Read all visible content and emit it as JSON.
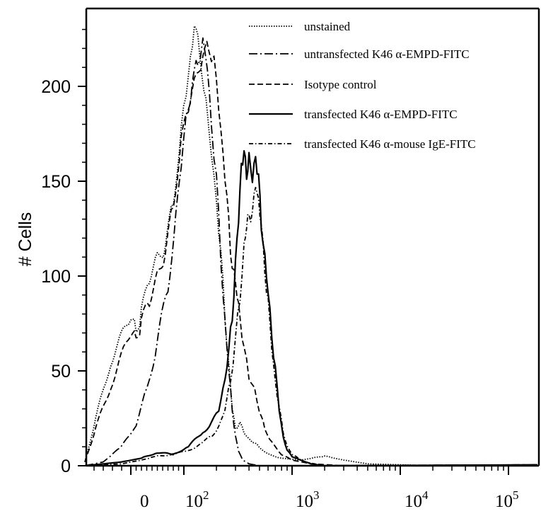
{
  "chart_data": {
    "type": "line",
    "title": "",
    "ylabel": "# Cells",
    "xlabel": "",
    "x_axis_scale": "biexponential (logicle)",
    "ylim": [
      0,
      235
    ],
    "yticks": [
      0,
      50,
      100,
      150,
      200
    ],
    "xtick_labels": [
      {
        "base": "0",
        "exp": ""
      },
      {
        "base": "10",
        "exp": "2"
      },
      {
        "base": "10",
        "exp": "3"
      },
      {
        "base": "10",
        "exp": "4"
      },
      {
        "base": "10",
        "exp": "5"
      }
    ],
    "grid": false,
    "legend_position": "top-right",
    "series": [
      {
        "name": "unstained",
        "style": "dotted",
        "points": [
          [
            -50,
            2
          ],
          [
            -38,
            25
          ],
          [
            -22,
            55
          ],
          [
            -8,
            70
          ],
          [
            0,
            78
          ],
          [
            10,
            72
          ],
          [
            20,
            80
          ],
          [
            35,
            100
          ],
          [
            50,
            110
          ],
          [
            65,
            115
          ],
          [
            80,
            140
          ],
          [
            95,
            175
          ],
          [
            105,
            198
          ],
          [
            115,
            215
          ],
          [
            125,
            230
          ],
          [
            140,
            220
          ],
          [
            160,
            190
          ],
          [
            180,
            165
          ],
          [
            200,
            140
          ],
          [
            220,
            110
          ],
          [
            240,
            80
          ],
          [
            260,
            52
          ],
          [
            280,
            30
          ],
          [
            300,
            20
          ],
          [
            330,
            22
          ],
          [
            360,
            18
          ],
          [
            400,
            14
          ],
          [
            450,
            12
          ],
          [
            500,
            10
          ],
          [
            600,
            6
          ],
          [
            800,
            4
          ],
          [
            1200,
            3
          ],
          [
            2000,
            5
          ],
          [
            3000,
            3
          ],
          [
            5000,
            1
          ],
          [
            20000,
            0
          ]
        ]
      },
      {
        "name": "untransfected K46 α-EMPD-FITC",
        "style": "long-dash-dot",
        "points": [
          [
            -50,
            0
          ],
          [
            -30,
            2
          ],
          [
            -10,
            10
          ],
          [
            10,
            22
          ],
          [
            30,
            40
          ],
          [
            50,
            65
          ],
          [
            70,
            95
          ],
          [
            85,
            130
          ],
          [
            95,
            160
          ],
          [
            105,
            185
          ],
          [
            120,
            200
          ],
          [
            135,
            215
          ],
          [
            150,
            222
          ],
          [
            165,
            210
          ],
          [
            180,
            180
          ],
          [
            200,
            150
          ],
          [
            220,
            110
          ],
          [
            240,
            75
          ],
          [
            260,
            50
          ],
          [
            280,
            30
          ],
          [
            300,
            15
          ],
          [
            320,
            8
          ],
          [
            350,
            3
          ],
          [
            400,
            1
          ],
          [
            500,
            0
          ]
        ]
      },
      {
        "name": "Isotype control",
        "style": "dashed",
        "points": [
          [
            -50,
            2
          ],
          [
            -38,
            20
          ],
          [
            -22,
            42
          ],
          [
            -8,
            60
          ],
          [
            0,
            70
          ],
          [
            10,
            68
          ],
          [
            20,
            75
          ],
          [
            35,
            88
          ],
          [
            50,
            100
          ],
          [
            65,
            112
          ],
          [
            80,
            138
          ],
          [
            95,
            170
          ],
          [
            110,
            190
          ],
          [
            130,
            205
          ],
          [
            150,
            215
          ],
          [
            170,
            222
          ],
          [
            190,
            212
          ],
          [
            210,
            190
          ],
          [
            230,
            165
          ],
          [
            250,
            140
          ],
          [
            270,
            115
          ],
          [
            290,
            100
          ],
          [
            310,
            90
          ],
          [
            330,
            80
          ],
          [
            360,
            60
          ],
          [
            400,
            48
          ],
          [
            450,
            40
          ],
          [
            500,
            28
          ],
          [
            560,
            20
          ],
          [
            650,
            12
          ],
          [
            800,
            6
          ],
          [
            1000,
            3
          ],
          [
            1500,
            1
          ],
          [
            3000,
            0
          ]
        ]
      },
      {
        "name": "transfected K46 α-EMPD-FITC",
        "style": "solid",
        "points": [
          [
            -50,
            0
          ],
          [
            -10,
            2
          ],
          [
            20,
            4
          ],
          [
            50,
            7
          ],
          [
            80,
            6
          ],
          [
            110,
            10
          ],
          [
            150,
            18
          ],
          [
            180,
            22
          ],
          [
            210,
            30
          ],
          [
            240,
            45
          ],
          [
            260,
            60
          ],
          [
            280,
            80
          ],
          [
            300,
            105
          ],
          [
            320,
            130
          ],
          [
            340,
            160
          ],
          [
            360,
            163
          ],
          [
            380,
            155
          ],
          [
            400,
            162
          ],
          [
            430,
            150
          ],
          [
            460,
            165
          ],
          [
            490,
            150
          ],
          [
            520,
            128
          ],
          [
            560,
            110
          ],
          [
            600,
            90
          ],
          [
            650,
            70
          ],
          [
            700,
            50
          ],
          [
            760,
            30
          ],
          [
            830,
            15
          ],
          [
            900,
            8
          ],
          [
            1000,
            5
          ],
          [
            1200,
            3
          ],
          [
            1500,
            1
          ],
          [
            2000,
            0
          ]
        ]
      },
      {
        "name": "transfected K46 α-mouse IgE-FITC",
        "style": "dash-dot",
        "points": [
          [
            -50,
            0
          ],
          [
            -10,
            1
          ],
          [
            20,
            3
          ],
          [
            50,
            5
          ],
          [
            80,
            6
          ],
          [
            110,
            8
          ],
          [
            150,
            12
          ],
          [
            180,
            16
          ],
          [
            210,
            20
          ],
          [
            240,
            30
          ],
          [
            270,
            45
          ],
          [
            300,
            65
          ],
          [
            330,
            90
          ],
          [
            360,
            115
          ],
          [
            380,
            125
          ],
          [
            400,
            135
          ],
          [
            430,
            130
          ],
          [
            460,
            150
          ],
          [
            490,
            140
          ],
          [
            520,
            125
          ],
          [
            560,
            105
          ],
          [
            600,
            85
          ],
          [
            650,
            62
          ],
          [
            700,
            45
          ],
          [
            760,
            30
          ],
          [
            830,
            18
          ],
          [
            900,
            10
          ],
          [
            1000,
            6
          ],
          [
            1300,
            2
          ],
          [
            2000,
            0
          ]
        ]
      }
    ]
  }
}
